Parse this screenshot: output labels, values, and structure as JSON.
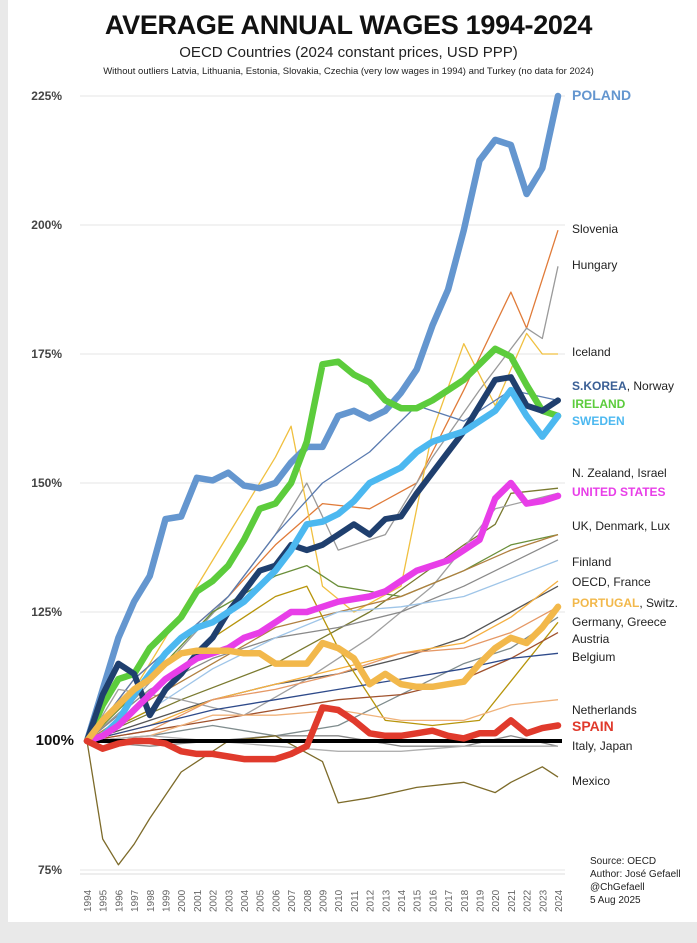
{
  "chart_data": {
    "type": "line",
    "title": "AVERAGE ANNUAL WAGES 1994-2024",
    "subtitle": "OECD Countries (2024 constant prices, USD PPP)",
    "note": "Without outliers Latvia, Lithuania, Estonia, Slovakia, Czechia (very low wages in 1994) and Turkey (no data for 2024)",
    "xlim": [
      1994,
      2024
    ],
    "ylim": [
      75,
      225
    ],
    "x_ticks": [
      "1994",
      "1995",
      "1996",
      "1997",
      "1998",
      "1999",
      "2000",
      "2001",
      "2002",
      "2003",
      "2004",
      "2005",
      "2006",
      "2007",
      "2008",
      "2009",
      "2010",
      "2011",
      "2012",
      "2013",
      "2014",
      "2015",
      "2016",
      "2017",
      "2018",
      "2019",
      "2020",
      "2021",
      "2022",
      "2023",
      "2024"
    ],
    "y_ticks": [
      "75%",
      "100%",
      "125%",
      "150%",
      "175%",
      "200%",
      "225%"
    ],
    "y_tick_values": [
      75,
      100,
      125,
      150,
      175,
      200,
      225
    ],
    "grid": "horizontal",
    "baseline": 100,
    "highlighted_series": [
      {
        "name": "POLAND",
        "color": "#6496cf",
        "values": [
          100,
          110,
          120,
          127,
          132,
          143,
          143.5,
          151,
          150.5,
          152,
          149.5,
          149,
          150,
          154,
          157,
          157,
          163,
          164,
          162.5,
          164,
          167.5,
          172,
          180.5,
          187.5,
          199,
          212.5,
          216.5,
          215.5,
          206,
          211,
          225
        ]
      },
      {
        "name": "IRELAND",
        "color": "#5ccc3c",
        "values": [
          100,
          107,
          112,
          113,
          118,
          121,
          124,
          129,
          131,
          134,
          139,
          145,
          146,
          150,
          158,
          173,
          173.5,
          171,
          169.5,
          166,
          164.5,
          164.5,
          166,
          168,
          170,
          173,
          176,
          174.5,
          169,
          164,
          163
        ]
      },
      {
        "name": "S.KOREA",
        "color": "#1f3f6e",
        "values": [
          100,
          109,
          115,
          113,
          105,
          110,
          113,
          117,
          120,
          125,
          129,
          133,
          134,
          138,
          137,
          138,
          140,
          142,
          140,
          143,
          143.5,
          148,
          152,
          156,
          160,
          165,
          170,
          170.5,
          165,
          164,
          166
        ]
      },
      {
        "name": "SWEDEN",
        "color": "#4cb8f0",
        "values": [
          100,
          101,
          104,
          109,
          113,
          117,
          120,
          122,
          123,
          125,
          127,
          130,
          133,
          137,
          142,
          142.5,
          144,
          146.5,
          150,
          151.5,
          153,
          156,
          158,
          159,
          160,
          162,
          164,
          168,
          163,
          159,
          163
        ]
      },
      {
        "name": "UNITED STATES",
        "color": "#e83ee8",
        "values": [
          100,
          101,
          103,
          106,
          109,
          112,
          114,
          116,
          117,
          118,
          120,
          121,
          123,
          125,
          125,
          126,
          127,
          127.5,
          128,
          129,
          131,
          133,
          134,
          135,
          137,
          139,
          147,
          150,
          146,
          146.5,
          147.5
        ]
      },
      {
        "name": "PORTUGAL",
        "color": "#f2b84b",
        "values": [
          100,
          104,
          107,
          110,
          112,
          115,
          117,
          117.5,
          117.5,
          117.5,
          117,
          117,
          115,
          115,
          115,
          119,
          118,
          116,
          111,
          113,
          111,
          110.5,
          110.5,
          111,
          111.5,
          115,
          118,
          120,
          119,
          122,
          126
        ]
      },
      {
        "name": "SPAIN",
        "color": "#e03a2c",
        "values": [
          100,
          98.5,
          99.5,
          100,
          100,
          99.5,
          98,
          97.5,
          97.5,
          97,
          96.5,
          96.5,
          96.5,
          97.5,
          99,
          106.5,
          106,
          104,
          101.5,
          101,
          101,
          101.5,
          102,
          101,
          100.5,
          101.5,
          101.5,
          104,
          101.5,
          102.5,
          103
        ]
      }
    ],
    "other_series": [
      {
        "name": "Slovenia",
        "color": "#e07b39",
        "x": [
          1994,
          1997,
          2000,
          2003,
          2006,
          2009,
          2012,
          2015,
          2018,
          2021,
          2022,
          2024
        ],
        "values": [
          100,
          112,
          120,
          128,
          138,
          146,
          145,
          150,
          168,
          187,
          180,
          199
        ]
      },
      {
        "name": "Hungary",
        "color": "#9a9a9a",
        "x": [
          1994,
          1997,
          2000,
          2003,
          2006,
          2008,
          2010,
          2013,
          2016,
          2019,
          2022,
          2023,
          2024
        ],
        "values": [
          100,
          108,
          118,
          128,
          140,
          150,
          137,
          140,
          155,
          168,
          180,
          178,
          192
        ]
      },
      {
        "name": "Iceland",
        "color": "#f0c040",
        "x": [
          1994,
          1997,
          2000,
          2003,
          2006,
          2007,
          2009,
          2011,
          2014,
          2016,
          2018,
          2020,
          2022,
          2023,
          2024
        ],
        "values": [
          100,
          110,
          125,
          140,
          155,
          161,
          130,
          125,
          130,
          160,
          177,
          165,
          179,
          175,
          175
        ]
      },
      {
        "name": "Norway",
        "color": "#5a7bb0",
        "x": [
          1994,
          1997,
          2000,
          2003,
          2006,
          2009,
          2012,
          2015,
          2018,
          2021,
          2024
        ],
        "values": [
          100,
          112,
          120,
          128,
          140,
          150,
          156,
          165,
          162,
          168,
          166
        ]
      },
      {
        "name": "N. Zealand",
        "color": "#7a7a30",
        "x": [
          1994,
          2000,
          2006,
          2012,
          2018,
          2020,
          2021,
          2024
        ],
        "values": [
          100,
          108,
          115,
          125,
          138,
          142,
          148,
          149
        ]
      },
      {
        "name": "Israel",
        "color": "#a0a0a0",
        "x": [
          1994,
          1996,
          2000,
          2004,
          2008,
          2012,
          2016,
          2020,
          2024
        ],
        "values": [
          100,
          110,
          108,
          105,
          112,
          120,
          130,
          145,
          148
        ]
      },
      {
        "name": "UK",
        "color": "#6a8f3a",
        "x": [
          1994,
          1998,
          2002,
          2006,
          2008,
          2010,
          2014,
          2018,
          2021,
          2024
        ],
        "values": [
          100,
          112,
          125,
          132,
          134,
          130,
          128,
          133,
          138,
          140
        ]
      },
      {
        "name": "Denmark",
        "color": "#b08040",
        "x": [
          1994,
          1998,
          2002,
          2006,
          2010,
          2014,
          2018,
          2021,
          2024
        ],
        "values": [
          100,
          108,
          115,
          122,
          125,
          128,
          133,
          137,
          140
        ]
      },
      {
        "name": "Lux",
        "color": "#8a8a8a",
        "x": [
          1994,
          1998,
          2002,
          2006,
          2010,
          2014,
          2018,
          2024
        ],
        "values": [
          100,
          110,
          116,
          120,
          122,
          125,
          130,
          139
        ]
      },
      {
        "name": "Finland",
        "color": "#9fc5e8",
        "x": [
          1994,
          1998,
          2002,
          2006,
          2010,
          2014,
          2018,
          2024
        ],
        "values": [
          100,
          106,
          114,
          120,
          125,
          126,
          128,
          135
        ]
      },
      {
        "name": "OECD",
        "color": "#555555",
        "x": [
          1994,
          1998,
          2002,
          2006,
          2010,
          2014,
          2018,
          2021,
          2024
        ],
        "values": [
          100,
          104,
          108,
          111,
          113,
          116,
          120,
          125,
          130
        ]
      },
      {
        "name": "France",
        "color": "#f5b041",
        "x": [
          1994,
          1998,
          2002,
          2006,
          2010,
          2014,
          2018,
          2021,
          2024
        ],
        "values": [
          100,
          103,
          108,
          111,
          114,
          117,
          119,
          124,
          131
        ]
      },
      {
        "name": "Switz.",
        "color": "#e59866",
        "x": [
          1994,
          1998,
          2002,
          2006,
          2010,
          2014,
          2018,
          2021,
          2024
        ],
        "values": [
          100,
          102,
          108,
          110,
          113,
          117,
          118,
          121,
          126
        ]
      },
      {
        "name": "Germany",
        "color": "#7f8c8d",
        "x": [
          1994,
          1998,
          2002,
          2006,
          2010,
          2014,
          2018,
          2021,
          2024
        ],
        "values": [
          100,
          101,
          103,
          101,
          103,
          109,
          115,
          118,
          124
        ]
      },
      {
        "name": "Greece",
        "color": "#b7950b",
        "x": [
          1994,
          1998,
          2002,
          2006,
          2008,
          2010,
          2013,
          2016,
          2019,
          2024
        ],
        "values": [
          100,
          106,
          120,
          128,
          130,
          118,
          104,
          103,
          104,
          123
        ]
      },
      {
        "name": "Austria",
        "color": "#a0522d",
        "x": [
          1994,
          1998,
          2002,
          2006,
          2010,
          2014,
          2018,
          2021,
          2024
        ],
        "values": [
          100,
          102,
          104,
          106,
          108,
          109,
          112,
          116,
          121
        ]
      },
      {
        "name": "Belgium",
        "color": "#2e4a8a",
        "x": [
          1994,
          1998,
          2002,
          2006,
          2010,
          2014,
          2018,
          2021,
          2024
        ],
        "values": [
          100,
          103,
          106,
          108,
          110,
          112,
          114,
          116,
          117
        ]
      },
      {
        "name": "Netherlands",
        "color": "#f0b27a",
        "x": [
          1994,
          1998,
          2002,
          2006,
          2010,
          2014,
          2018,
          2021,
          2024
        ],
        "values": [
          100,
          101,
          105,
          105,
          106,
          104,
          104,
          107,
          108
        ]
      },
      {
        "name": "Italy",
        "color": "#888888",
        "x": [
          1994,
          1998,
          2002,
          2006,
          2010,
          2014,
          2018,
          2021,
          2024
        ],
        "values": [
          100,
          99,
          100,
          101,
          101,
          99,
          99,
          101,
          99
        ]
      },
      {
        "name": "Japan",
        "color": "#b0b0b0",
        "x": [
          1994,
          1998,
          2002,
          2006,
          2010,
          2014,
          2018,
          2021,
          2024
        ],
        "values": [
          100,
          101,
          100,
          99,
          98,
          98,
          99,
          99,
          99
        ]
      },
      {
        "name": "Mexico",
        "color": "#7d6b2a",
        "x": [
          1994,
          1995,
          1996,
          1997,
          1998,
          2000,
          2003,
          2006,
          2009,
          2010,
          2012,
          2015,
          2018,
          2020,
          2021,
          2023,
          2024
        ],
        "values": [
          100,
          81,
          76,
          80,
          85,
          94,
          100,
          101,
          96,
          88,
          89,
          91,
          92,
          90,
          92,
          95,
          93
        ]
      }
    ],
    "end_labels": [
      {
        "bold": "POLAND",
        "rest": "",
        "color": "#6496cf"
      },
      {
        "bold": "",
        "rest": "Slovenia",
        "color": "#222222"
      },
      {
        "bold": "",
        "rest": "Hungary",
        "color": "#222222"
      },
      {
        "bold": "",
        "rest": "Iceland",
        "color": "#222222"
      },
      {
        "bold": "S.KOREA",
        "rest": ", Norway",
        "color": "#3a5f95"
      },
      {
        "bold": "IRELAND",
        "rest": "",
        "color": "#5ccc3c"
      },
      {
        "bold": "SWEDEN",
        "rest": "",
        "color": "#4cb8f0"
      },
      {
        "bold": "",
        "rest": "N. Zealand, Israel",
        "color": "#222222"
      },
      {
        "bold": "UNITED STATES",
        "rest": "",
        "color": "#e83ee8"
      },
      {
        "bold": "",
        "rest": "UK, Denmark, Lux",
        "color": "#222222"
      },
      {
        "bold": "",
        "rest": "Finland",
        "color": "#222222"
      },
      {
        "bold": "",
        "rest": "OECD, France",
        "color": "#222222"
      },
      {
        "bold": "PORTUGAL",
        "rest": ", Switz.",
        "color": "#f2b84b"
      },
      {
        "bold": "",
        "rest": "Germany, Greece",
        "color": "#222222"
      },
      {
        "bold": "",
        "rest": "Austria",
        "color": "#222222"
      },
      {
        "bold": "",
        "rest": "Belgium",
        "color": "#222222"
      },
      {
        "bold": "",
        "rest": "Netherlands",
        "color": "#222222"
      },
      {
        "bold": "SPAIN",
        "rest": "",
        "color": "#e03a2c"
      },
      {
        "bold": "",
        "rest": "Italy, Japan",
        "color": "#222222"
      },
      {
        "bold": "",
        "rest": "Mexico",
        "color": "#222222"
      }
    ]
  },
  "credits": {
    "source": "Source: OECD",
    "author": "Author: José Gefaell",
    "handle": "@ChGefaell",
    "date": "5 Aug 2025"
  }
}
